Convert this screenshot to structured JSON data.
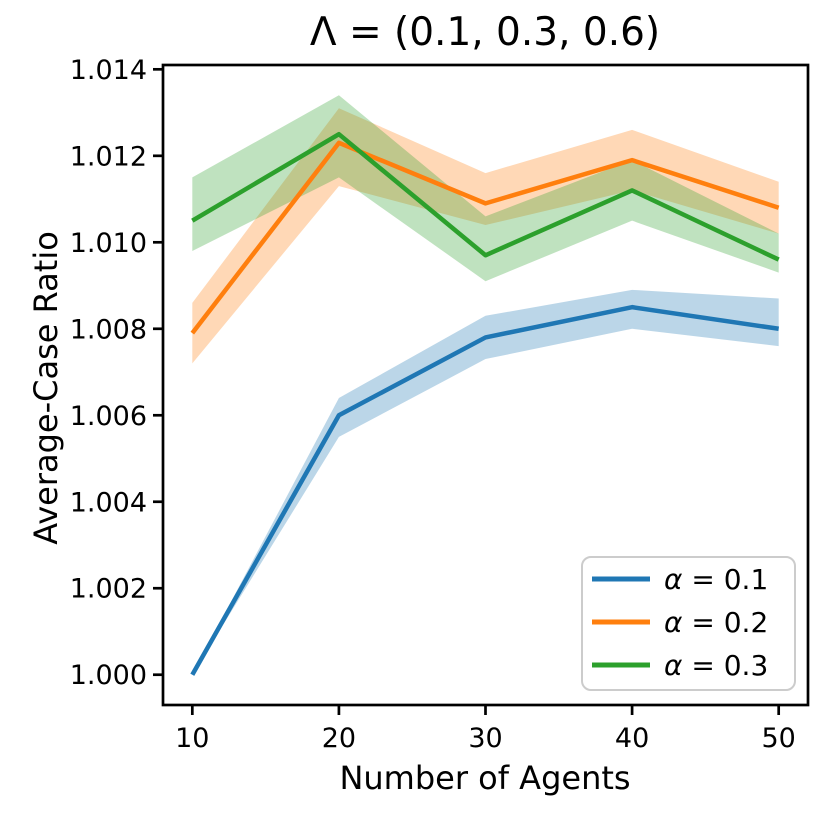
{
  "figure": {
    "background_color": "#ffffff",
    "text_color": "#000000",
    "spine_color": "#000000"
  },
  "chart_data": {
    "type": "line",
    "title": "Λ = (0.1, 0.3, 0.6)",
    "xlabel": "Number of Agents",
    "ylabel": "Average-Case Ratio",
    "x": [
      10,
      20,
      30,
      40,
      50
    ],
    "xlim": [
      8,
      52
    ],
    "ylim": [
      0.9993,
      1.0141
    ],
    "xticks": [
      "10",
      "20",
      "30",
      "40",
      "50"
    ],
    "yticks": [
      "1.000",
      "1.002",
      "1.004",
      "1.006",
      "1.008",
      "1.010",
      "1.012",
      "1.014"
    ],
    "grid": false,
    "band_alpha": 0.3,
    "legend": {
      "position": "lower right",
      "border_color": "#cccccc",
      "background": "#ffffff"
    },
    "series": [
      {
        "name": "α = 0.1",
        "color": "#1f77b4",
        "values": [
          1.0,
          1.006,
          1.0078,
          1.0085,
          1.008
        ],
        "band_lower": [
          1.0,
          1.0055,
          1.0073,
          1.008,
          1.0076
        ],
        "band_upper": [
          1.0,
          1.0064,
          1.0083,
          1.0089,
          1.0087
        ]
      },
      {
        "name": "α = 0.2",
        "color": "#ff7f0e",
        "values": [
          1.0079,
          1.0123,
          1.0109,
          1.0119,
          1.0108
        ],
        "band_lower": [
          1.0072,
          1.0113,
          1.0104,
          1.0112,
          1.0102
        ],
        "band_upper": [
          1.0086,
          1.0131,
          1.0116,
          1.0126,
          1.0114
        ]
      },
      {
        "name": "α = 0.3",
        "color": "#2ca02c",
        "values": [
          1.0105,
          1.0125,
          1.0097,
          1.0112,
          1.0096
        ],
        "band_lower": [
          1.0098,
          1.0115,
          1.0091,
          1.0105,
          1.0093
        ],
        "band_upper": [
          1.0115,
          1.0134,
          1.0106,
          1.0119,
          1.0102
        ]
      }
    ]
  }
}
